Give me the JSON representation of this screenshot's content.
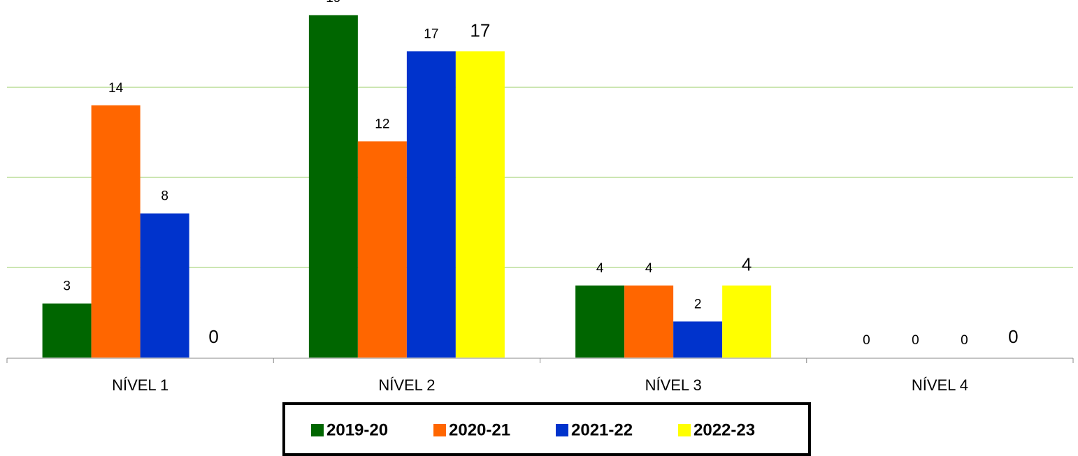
{
  "chart_data": {
    "type": "bar",
    "categories": [
      "NÍVEL 1",
      "NÍVEL 2",
      "NÍVEL 3",
      "NÍVEL 4"
    ],
    "series": [
      {
        "name": "2019-20",
        "color": "#006600",
        "values": [
          3,
          19,
          4,
          0
        ]
      },
      {
        "name": "2020-21",
        "color": "#ff6600",
        "values": [
          14,
          12,
          4,
          0
        ]
      },
      {
        "name": "2021-22",
        "color": "#0033cc",
        "values": [
          8,
          17,
          2,
          0
        ]
      },
      {
        "name": "2022-23",
        "color": "#ffff00",
        "values": [
          0,
          17,
          4,
          0
        ]
      }
    ],
    "ylim": [
      0,
      20
    ],
    "yticks": [
      0,
      5,
      10,
      15
    ],
    "grid": true,
    "legend": "bottom"
  }
}
